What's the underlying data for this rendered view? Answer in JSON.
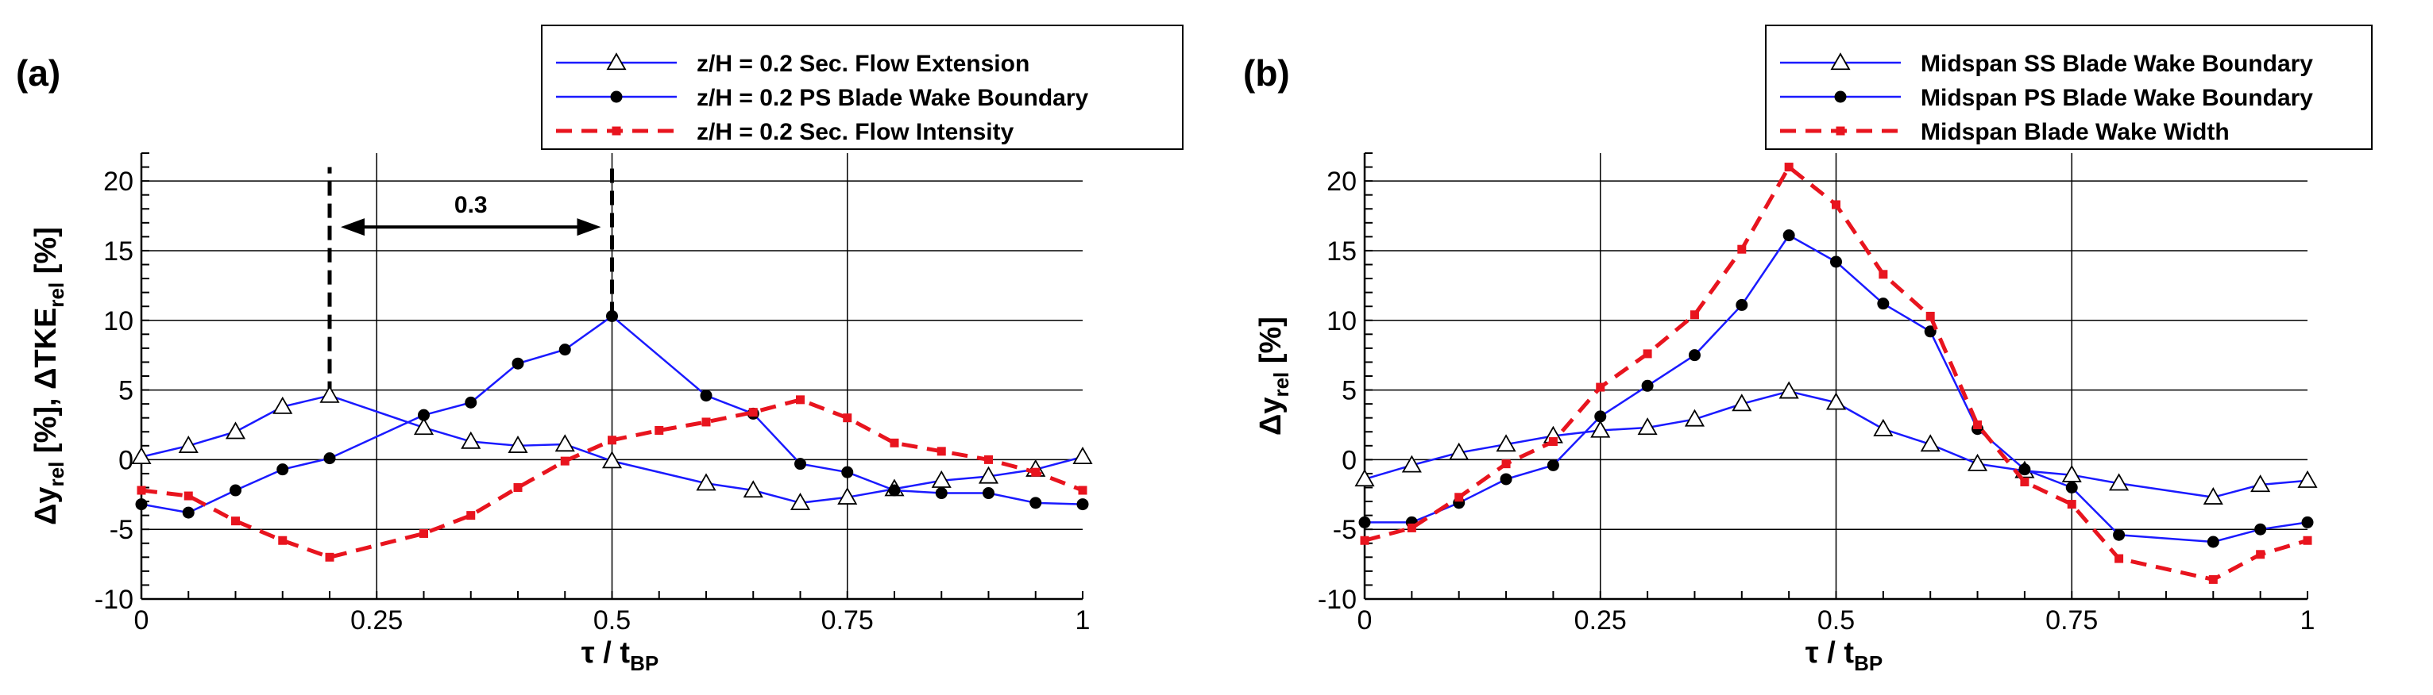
{
  "chart_data": [
    {
      "type": "line",
      "panel_label": "(a)",
      "xlabel": "τ / t",
      "xlabel_sub": "BP",
      "ylabel_parts": [
        "Δy",
        "rel",
        " [%],   ΔTKE",
        "rel",
        " [%]"
      ],
      "xlim": [
        0,
        1
      ],
      "ylim": [
        -10,
        22
      ],
      "xticks": [
        0,
        0.25,
        0.5,
        0.75,
        1
      ],
      "xtick_labels": [
        "0",
        "0.25",
        "0.5",
        "0.75",
        "1"
      ],
      "yticks": [
        -10,
        -5,
        0,
        5,
        10,
        15,
        20
      ],
      "ytick_labels": [
        "-10",
        "-5",
        "0",
        "5",
        "10",
        "15",
        "20"
      ],
      "grid": true,
      "legend_position": "top-right",
      "series": [
        {
          "name": "z/H = 0.2 Sec. Flow Extension",
          "color": "#1a1aff",
          "marker": "triangle-open",
          "dash": "solid",
          "x": [
            0,
            0.05,
            0.1,
            0.15,
            0.2,
            0.3,
            0.35,
            0.4,
            0.45,
            0.5,
            0.6,
            0.65,
            0.7,
            0.75,
            0.8,
            0.85,
            0.9,
            0.95,
            1
          ],
          "y": [
            0.2,
            1.0,
            2.0,
            3.8,
            4.6,
            2.3,
            1.3,
            1.0,
            1.1,
            -0.1,
            -1.7,
            -2.2,
            -3.1,
            -2.7,
            -2.1,
            -1.5,
            -1.2,
            -0.7,
            0.2
          ]
        },
        {
          "name": "z/H = 0.2 PS Blade Wake Boundary",
          "color": "#1a1aff",
          "marker": "circle-filled",
          "dash": "solid",
          "x": [
            0,
            0.05,
            0.1,
            0.15,
            0.2,
            0.3,
            0.35,
            0.4,
            0.45,
            0.5,
            0.6,
            0.65,
            0.7,
            0.75,
            0.8,
            0.85,
            0.9,
            0.95,
            1
          ],
          "y": [
            -3.2,
            -3.8,
            -2.2,
            -0.7,
            0.1,
            3.2,
            4.1,
            6.9,
            7.9,
            10.3,
            4.6,
            3.3,
            -0.3,
            -0.9,
            -2.2,
            -2.4,
            -2.4,
            -3.1,
            -3.2
          ]
        },
        {
          "name": "z/H = 0.2 Sec. Flow Intensity",
          "color": "#e8141e",
          "marker": "square-filled",
          "dash": "dashed",
          "x": [
            0,
            0.05,
            0.1,
            0.15,
            0.2,
            0.3,
            0.35,
            0.4,
            0.45,
            0.5,
            0.55,
            0.6,
            0.65,
            0.7,
            0.75,
            0.8,
            0.85,
            0.9,
            0.95,
            1
          ],
          "y": [
            -2.2,
            -2.6,
            -4.4,
            -5.8,
            -7.0,
            -5.3,
            -4.0,
            -2.0,
            -0.1,
            1.4,
            2.1,
            2.7,
            3.4,
            4.3,
            3.0,
            1.2,
            0.6,
            0.0,
            -0.9,
            -2.2
          ]
        }
      ],
      "annotations": [
        {
          "type": "vline-dashed",
          "x": 0.2,
          "y_from": 4.6,
          "y_to": 21
        },
        {
          "type": "vline-dashed",
          "x": 0.5,
          "y_from": 10.3,
          "y_to": 21
        },
        {
          "type": "double-arrow",
          "x_from": 0.2,
          "x_to": 0.5,
          "y": 16.7,
          "label": "0.3",
          "label_y": 18.3
        }
      ]
    },
    {
      "type": "line",
      "panel_label": "(b)",
      "xlabel": "τ / t",
      "xlabel_sub": "BP",
      "ylabel_parts": [
        "Δy",
        "rel",
        " [%]"
      ],
      "xlim": [
        0,
        1
      ],
      "ylim": [
        -10,
        22
      ],
      "xticks": [
        0,
        0.25,
        0.5,
        0.75,
        1
      ],
      "xtick_labels": [
        "0",
        "0.25",
        "0.5",
        "0.75",
        "1"
      ],
      "yticks": [
        -10,
        -5,
        0,
        5,
        10,
        15,
        20
      ],
      "ytick_labels": [
        "-10",
        "-5",
        "0",
        "5",
        "10",
        "15",
        "20"
      ],
      "grid": true,
      "legend_position": "top-right",
      "series": [
        {
          "name": "Midspan SS Blade Wake Boundary",
          "color": "#1a1aff",
          "marker": "triangle-open",
          "dash": "solid",
          "x": [
            0,
            0.05,
            0.1,
            0.15,
            0.2,
            0.25,
            0.3,
            0.35,
            0.4,
            0.45,
            0.5,
            0.55,
            0.6,
            0.65,
            0.7,
            0.75,
            0.8,
            0.9,
            0.95,
            1
          ],
          "y": [
            -1.4,
            -0.4,
            0.5,
            1.1,
            1.7,
            2.1,
            2.3,
            2.9,
            4.0,
            4.9,
            4.1,
            2.2,
            1.1,
            -0.3,
            -0.8,
            -1.1,
            -1.7,
            -2.7,
            -1.8,
            -1.5
          ]
        },
        {
          "name": "Midspan PS Blade Wake Boundary",
          "color": "#1a1aff",
          "marker": "circle-filled",
          "dash": "solid",
          "x": [
            0,
            0.05,
            0.1,
            0.15,
            0.2,
            0.25,
            0.3,
            0.35,
            0.4,
            0.45,
            0.5,
            0.55,
            0.6,
            0.65,
            0.7,
            0.75,
            0.8,
            0.9,
            0.95,
            1
          ],
          "y": [
            -4.5,
            -4.5,
            -3.1,
            -1.4,
            -0.4,
            3.1,
            5.3,
            7.5,
            11.1,
            16.1,
            14.2,
            11.2,
            9.2,
            2.2,
            -0.7,
            -2.0,
            -5.4,
            -5.9,
            -5.0,
            -4.5
          ]
        },
        {
          "name": "Midspan Blade Wake Width",
          "color": "#e8141e",
          "marker": "square-filled",
          "dash": "dashed",
          "x": [
            0,
            0.05,
            0.1,
            0.15,
            0.2,
            0.25,
            0.3,
            0.35,
            0.4,
            0.45,
            0.5,
            0.55,
            0.6,
            0.65,
            0.7,
            0.75,
            0.8,
            0.9,
            0.95,
            1
          ],
          "y": [
            -5.8,
            -4.9,
            -2.7,
            -0.3,
            1.3,
            5.2,
            7.6,
            10.4,
            15.1,
            21.0,
            18.3,
            13.3,
            10.3,
            2.5,
            -1.6,
            -3.2,
            -7.1,
            -8.6,
            -6.8,
            -5.8
          ]
        }
      ],
      "annotations": []
    }
  ]
}
